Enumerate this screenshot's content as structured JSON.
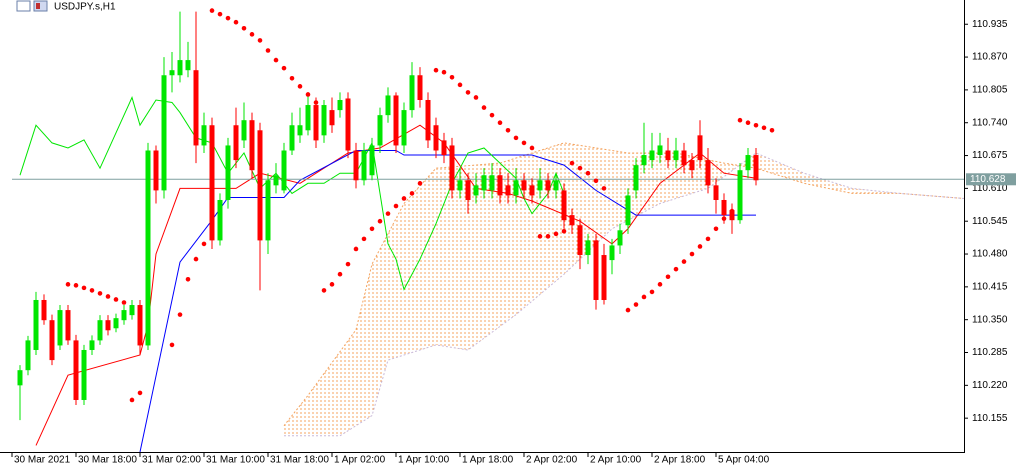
{
  "chart_data": {
    "type": "candlestick",
    "title": "USDJPY.s,H1",
    "xlim": [
      -1,
      118
    ],
    "xticks": [
      {
        "value": -1,
        "label": "30 Mar 2021"
      },
      {
        "value": 7,
        "label": "30 Mar 18:00"
      },
      {
        "value": 15,
        "label": "31 Mar 02:00"
      },
      {
        "value": 23,
        "label": "31 Mar 10:00"
      },
      {
        "value": 31,
        "label": "31 Mar 18:00"
      },
      {
        "value": 39,
        "label": "1 Apr 02:00"
      },
      {
        "value": 47,
        "label": "1 Apr 10:00"
      },
      {
        "value": 55,
        "label": "1 Apr 18:00"
      },
      {
        "value": 63,
        "label": "2 Apr 02:00"
      },
      {
        "value": 71,
        "label": "2 Apr 10:00"
      },
      {
        "value": 79,
        "label": "2 Apr 18:00"
      },
      {
        "value": 87,
        "label": "5 Apr 04:00"
      }
    ],
    "ylim": [
      110.088,
      110.983
    ],
    "yticks": [
      {
        "value": 110.935,
        "label": "110.935"
      },
      {
        "value": 110.87,
        "label": "110.870"
      },
      {
        "value": 110.805,
        "label": "110.805"
      },
      {
        "value": 110.74,
        "label": "110.740"
      },
      {
        "value": 110.675,
        "label": "110.675"
      },
      {
        "value": 110.61,
        "label": "110.610"
      },
      {
        "value": 110.545,
        "label": "110.545"
      },
      {
        "value": 110.48,
        "label": "110.480"
      },
      {
        "value": 110.415,
        "label": "110.415"
      },
      {
        "value": 110.35,
        "label": "110.350"
      },
      {
        "value": 110.285,
        "label": "110.285"
      },
      {
        "value": 110.22,
        "label": "110.220"
      },
      {
        "value": 110.155,
        "label": "110.155"
      }
    ],
    "up_color": "#00e600",
    "down_color": "#ff0000",
    "open": [
      110.22,
      110.25,
      110.29,
      110.389,
      110.349,
      110.299,
      110.369,
      110.309,
      110.191,
      110.29,
      110.309,
      110.349,
      110.333,
      110.349,
      110.359,
      110.379,
      110.299,
      110.685,
      110.606,
      110.834,
      110.834,
      110.844,
      110.844,
      110.695,
      110.735,
      110.507,
      110.587,
      110.735,
      110.705,
      110.745,
      110.725,
      110.507,
      110.616,
      110.606,
      110.685,
      110.715,
      110.725,
      110.775,
      110.715,
      110.765,
      110.765,
      110.788,
      110.685,
      110.626,
      110.636,
      110.695,
      110.755,
      110.794,
      110.695,
      110.765,
      110.834,
      110.785,
      110.735,
      110.705,
      110.695,
      110.606,
      110.626,
      110.596,
      110.606,
      110.606,
      110.636,
      110.616,
      110.596,
      110.626,
      110.616,
      110.606,
      110.626,
      110.606,
      110.606,
      110.557,
      110.537,
      110.478,
      110.507,
      110.478,
      110.468,
      110.497,
      110.537,
      110.606,
      110.656,
      110.666,
      110.676,
      110.685,
      110.666,
      110.685,
      110.666,
      110.715,
      110.666,
      110.616,
      110.587,
      110.567,
      110.547,
      110.646,
      110.676
    ],
    "high": [
      110.26,
      110.318,
      110.405,
      110.4,
      110.36,
      110.379,
      110.379,
      110.32,
      110.3,
      110.319,
      110.359,
      110.359,
      110.362,
      110.379,
      110.389,
      110.389,
      110.7,
      110.695,
      110.87,
      110.88,
      110.96,
      110.9,
      110.96,
      110.76,
      110.75,
      110.6,
      110.71,
      110.77,
      110.78,
      110.76,
      110.74,
      110.64,
      110.66,
      110.7,
      110.76,
      110.77,
      110.8,
      110.79,
      110.785,
      110.79,
      110.8,
      110.8,
      110.7,
      110.7,
      110.71,
      110.77,
      110.81,
      110.8,
      110.78,
      110.86,
      110.85,
      110.8,
      110.75,
      110.72,
      110.71,
      110.65,
      110.64,
      110.64,
      110.65,
      110.66,
      110.65,
      110.64,
      110.65,
      110.64,
      110.63,
      110.65,
      110.64,
      110.64,
      110.62,
      110.57,
      110.55,
      110.52,
      110.52,
      110.5,
      110.51,
      110.54,
      110.61,
      110.67,
      110.74,
      110.72,
      110.72,
      110.71,
      110.71,
      110.7,
      110.68,
      110.745,
      110.69,
      110.63,
      110.6,
      110.58,
      110.66,
      110.69,
      110.69
    ],
    "low": [
      110.151,
      110.24,
      110.28,
      110.34,
      110.26,
      110.29,
      110.3,
      110.181,
      110.181,
      110.28,
      110.3,
      110.319,
      110.325,
      110.34,
      110.35,
      110.28,
      110.29,
      110.58,
      110.59,
      110.8,
      110.82,
      110.83,
      110.66,
      110.68,
      110.49,
      110.497,
      110.57,
      110.65,
      110.69,
      110.63,
      110.408,
      110.48,
      110.6,
      110.6,
      110.676,
      110.7,
      110.715,
      110.69,
      110.7,
      110.72,
      110.75,
      110.67,
      110.61,
      110.616,
      110.626,
      110.68,
      110.74,
      110.68,
      110.68,
      110.75,
      110.77,
      110.69,
      110.67,
      110.66,
      110.59,
      110.59,
      110.56,
      110.58,
      110.59,
      110.59,
      110.58,
      110.58,
      110.58,
      110.59,
      110.58,
      110.59,
      110.59,
      110.59,
      110.53,
      110.52,
      110.45,
      110.46,
      110.37,
      110.38,
      110.44,
      110.48,
      110.52,
      110.59,
      110.64,
      110.65,
      110.66,
      110.65,
      110.65,
      110.64,
      110.63,
      110.65,
      110.6,
      110.56,
      110.54,
      110.52,
      110.54,
      110.63,
      110.616
    ],
    "close": [
      110.25,
      110.309,
      110.389,
      110.349,
      110.27,
      110.369,
      110.309,
      110.191,
      110.29,
      110.309,
      110.349,
      110.329,
      110.353,
      110.369,
      110.379,
      110.299,
      110.685,
      110.606,
      110.834,
      110.844,
      110.864,
      110.864,
      110.695,
      110.735,
      110.507,
      110.587,
      110.695,
      110.666,
      110.745,
      110.646,
      110.507,
      110.626,
      110.636,
      110.685,
      110.735,
      110.735,
      110.775,
      110.705,
      110.775,
      110.735,
      110.785,
      110.685,
      110.626,
      110.685,
      110.695,
      110.755,
      110.794,
      110.695,
      110.765,
      110.834,
      110.785,
      110.705,
      110.685,
      110.676,
      110.606,
      110.626,
      110.587,
      110.616,
      110.636,
      110.636,
      110.596,
      110.596,
      110.626,
      110.606,
      110.596,
      110.626,
      110.606,
      110.626,
      110.547,
      110.537,
      110.478,
      110.507,
      110.389,
      110.389,
      110.497,
      110.527,
      110.596,
      110.656,
      110.676,
      110.685,
      110.695,
      110.666,
      110.685,
      110.656,
      110.646,
      110.666,
      110.616,
      110.587,
      110.557,
      110.547,
      110.646,
      110.676,
      110.626
    ],
    "cloud": {
      "color": "#f4a460",
      "span_a": {
        "x": [
          33,
          36,
          42,
          44,
          48,
          52,
          60,
          68,
          76,
          82,
          88,
          92,
          98,
          104,
          110,
          118
        ],
        "values": [
          110.14,
          110.2,
          110.33,
          110.46,
          110.58,
          110.65,
          110.66,
          110.7,
          110.68,
          110.68,
          110.66,
          110.65,
          110.62,
          110.6,
          110.6,
          110.59
        ]
      },
      "span_b": {
        "x": [
          33,
          40,
          44,
          46,
          52,
          56,
          62,
          68,
          74,
          80,
          86,
          92,
          98,
          104,
          110,
          118
        ],
        "values": [
          110.12,
          110.12,
          110.16,
          110.27,
          110.3,
          110.29,
          110.36,
          110.44,
          110.53,
          110.58,
          110.61,
          110.68,
          110.64,
          110.61,
          110.6,
          110.59
        ]
      }
    },
    "lines": [
      {
        "color": "#ff0000",
        "x": [
          2,
          6,
          15,
          16,
          17,
          20,
          27,
          30,
          35,
          41,
          45,
          50,
          53,
          57,
          61,
          64,
          70,
          74,
          76,
          80,
          85,
          88,
          92
        ],
        "values": [
          110.101,
          110.24,
          110.28,
          110.34,
          110.48,
          110.61,
          110.61,
          110.64,
          110.62,
          110.68,
          110.69,
          110.735,
          110.7,
          110.61,
          110.6,
          110.585,
          110.545,
          110.5,
          110.53,
          110.62,
          110.68,
          110.64,
          110.63
        ]
      },
      {
        "color": "#0000ff",
        "x": [
          15,
          20,
          24,
          26,
          33,
          35,
          42,
          47,
          48,
          64,
          68,
          72,
          77,
          92
        ],
        "values": [
          110.088,
          110.464,
          110.547,
          110.592,
          110.592,
          110.626,
          110.685,
          110.685,
          110.676,
          110.676,
          110.656,
          110.606,
          110.557,
          110.557
        ]
      },
      {
        "color": "#00e600",
        "x": [
          0,
          2,
          4,
          6,
          8,
          10,
          12,
          14,
          15,
          17,
          19,
          20,
          22,
          24,
          26,
          28,
          30,
          32,
          34,
          36,
          38,
          40,
          42,
          44,
          46,
          47,
          48,
          50,
          52,
          54,
          56,
          58,
          60,
          62,
          63,
          64,
          66,
          67,
          68
        ],
        "values": [
          110.636,
          110.735,
          110.7,
          110.69,
          110.706,
          110.65,
          110.72,
          110.79,
          110.735,
          110.785,
          110.78,
          110.76,
          110.71,
          110.7,
          110.64,
          110.68,
          110.61,
          110.64,
          110.6,
          110.62,
          110.62,
          110.64,
          110.64,
          110.7,
          110.5,
          110.47,
          110.41,
          110.47,
          110.54,
          110.62,
          110.68,
          110.69,
          110.66,
          110.63,
          110.59,
          110.56,
          110.6,
          110.64,
          110.6
        ]
      }
    ],
    "sar": {
      "color": "#ff0000",
      "x": [
        6,
        7,
        8,
        9,
        10,
        11,
        12,
        13,
        14,
        15,
        19,
        20,
        21,
        22,
        23,
        24,
        25,
        26,
        27,
        28,
        29,
        30,
        31,
        32,
        33,
        34,
        35,
        36,
        37,
        38,
        39,
        40,
        41,
        42,
        43,
        44,
        45,
        46,
        47,
        48,
        49,
        50,
        52,
        53,
        54,
        55,
        56,
        57,
        58,
        59,
        60,
        61,
        62,
        63,
        64,
        65,
        66,
        67,
        68,
        69,
        70,
        71,
        72,
        73,
        76,
        77,
        78,
        79,
        80,
        81,
        82,
        83,
        84,
        85,
        86,
        87,
        88,
        89,
        90,
        91,
        92,
        93,
        94
      ],
      "values": [
        110.42,
        110.418,
        110.413,
        110.408,
        110.402,
        110.396,
        110.39,
        110.384,
        110.191,
        110.205,
        110.3,
        110.36,
        110.43,
        110.47,
        110.5,
        110.962,
        110.955,
        110.947,
        110.939,
        110.927,
        110.915,
        110.903,
        110.883,
        110.864,
        110.848,
        110.828,
        110.812,
        110.796,
        110.78,
        110.408,
        110.42,
        110.44,
        110.46,
        110.49,
        110.51,
        110.53,
        110.545,
        110.56,
        110.575,
        110.59,
        110.6,
        110.62,
        110.844,
        110.84,
        110.83,
        110.815,
        110.8,
        110.79,
        110.77,
        110.755,
        110.74,
        110.725,
        110.71,
        110.7,
        110.69,
        110.515,
        110.515,
        110.52,
        110.525,
        110.66,
        110.65,
        110.64,
        110.625,
        110.61,
        110.369,
        110.38,
        110.395,
        110.405,
        110.42,
        110.435,
        110.45,
        110.465,
        110.48,
        110.495,
        110.51,
        110.53,
        110.55,
        110.565,
        110.745,
        110.74,
        110.735,
        110.73,
        110.725
      ]
    },
    "last_price": 110.628,
    "last_price_color": "#7f9f9f"
  }
}
